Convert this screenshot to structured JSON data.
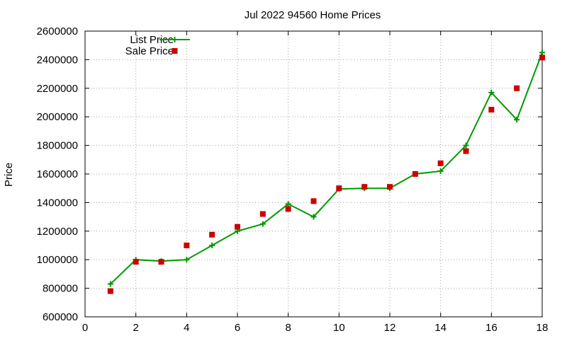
{
  "chart_data": {
    "type": "line",
    "title": "Jul 2022 94560 Home Prices",
    "xlabel": "",
    "ylabel": "Price",
    "xlim": [
      0,
      18
    ],
    "ylim": [
      600000,
      2600000
    ],
    "x_ticks": [
      0,
      2,
      4,
      6,
      8,
      10,
      12,
      14,
      16,
      18
    ],
    "y_ticks": [
      600000,
      800000,
      1000000,
      1200000,
      1400000,
      1600000,
      1800000,
      2000000,
      2200000,
      2400000,
      2600000
    ],
    "grid": true,
    "legend_position": "top-left",
    "series": [
      {
        "name": "List Price",
        "style": "line-with-plus-markers",
        "color": "#009900",
        "x": [
          1,
          2,
          3,
          4,
          5,
          6,
          7,
          8,
          9,
          10,
          11,
          12,
          13,
          14,
          15,
          16,
          17,
          18
        ],
        "y": [
          830000,
          1000000,
          990000,
          1000000,
          1100000,
          1200000,
          1250000,
          1390000,
          1300000,
          1495000,
          1500000,
          1500000,
          1600000,
          1620000,
          1800000,
          2170000,
          1980000,
          2450000
        ]
      },
      {
        "name": "Sale Price",
        "style": "square-markers",
        "color": "#cc0000",
        "x": [
          1,
          2,
          3,
          4,
          5,
          6,
          7,
          8,
          9,
          10,
          11,
          12,
          13,
          14,
          15,
          16,
          17,
          18
        ],
        "y": [
          780000,
          985000,
          985000,
          1100000,
          1175000,
          1230000,
          1320000,
          1355000,
          1410000,
          1500000,
          1510000,
          1510000,
          1600000,
          1675000,
          1760000,
          2050000,
          2200000,
          2415000
        ]
      }
    ]
  }
}
